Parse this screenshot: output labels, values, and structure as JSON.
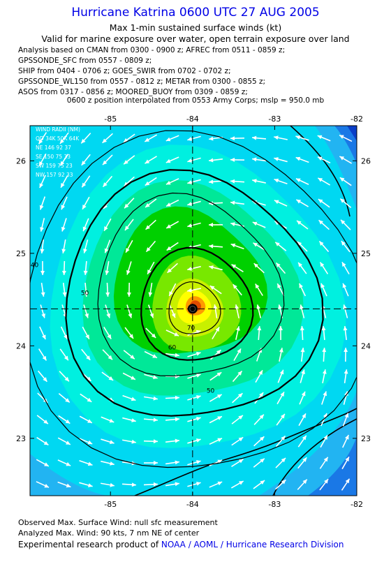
{
  "header": {
    "title": "Hurricane Katrina 0600 UTC 27 AUG 2005",
    "subtitle_1": "Max 1-min sustained surface winds (kt)",
    "subtitle_2": "Valid for marine exposure over water, open terrain exposure over land"
  },
  "analysis_sources": [
    "Analysis based on  CMAN from 0300 - 0900 z;  AFREC from 0511 - 0859 z;",
    "GPSSONDE_SFC from 0557 - 0809 z;",
    "SHIP from 0404 - 0706 z;  GOES_SWIR from 0702 - 0702 z;",
    "GPSSONDE_WL150 from 0557 - 0812 z;  METAR from 0300 - 0855 z;",
    "ASOS from 0317 - 0856 z;  MOORED_BUOY from 0309 - 0859 z;"
  ],
  "interpolation_note": "0600 z position interpolated from 0553 Army Corps; mslp = 950.0 mb",
  "chart_data": {
    "type": "heatmap",
    "x_ticks": [
      -85,
      -84,
      -83,
      -82
    ],
    "y_ticks": [
      26,
      25,
      24,
      23
    ],
    "xlim": [
      -85.98,
      -82.0
    ],
    "ylim": [
      22.38,
      26.38
    ],
    "center": {
      "lon": -84.0,
      "lat": 24.4
    },
    "contour_levels": [
      {
        "value": 40,
        "label": "40"
      },
      {
        "value": 50,
        "label": "50"
      },
      {
        "value": 60,
        "label": "60"
      },
      {
        "value": 70,
        "label": "70"
      }
    ],
    "wind_radii": {
      "title": "WIND RADII (NM)",
      "header": "QD 34K 50K 64K",
      "rows": [
        "NE 146  92  37",
        "SE 150  75  33",
        "SW 159  75  23",
        "NW 157  92  33"
      ]
    },
    "fill_colors": [
      "#0a3ec8",
      "#1a78e6",
      "#22b4f2",
      "#00d8f2",
      "#00f0e0",
      "#00e898",
      "#00d000",
      "#78e800",
      "#c8f000",
      "#ffff00",
      "#ff9a00",
      "#e04a00"
    ]
  },
  "footer": {
    "observed": "Observed Max. Surface Wind: null sfc measurement",
    "analyzed": "Analyzed Max. Wind: 90 kts, 7 nm NE of center",
    "credit_prefix": "Experimental research product of ",
    "credit_org": "NOAA / AOML / Hurricane Research Division"
  }
}
